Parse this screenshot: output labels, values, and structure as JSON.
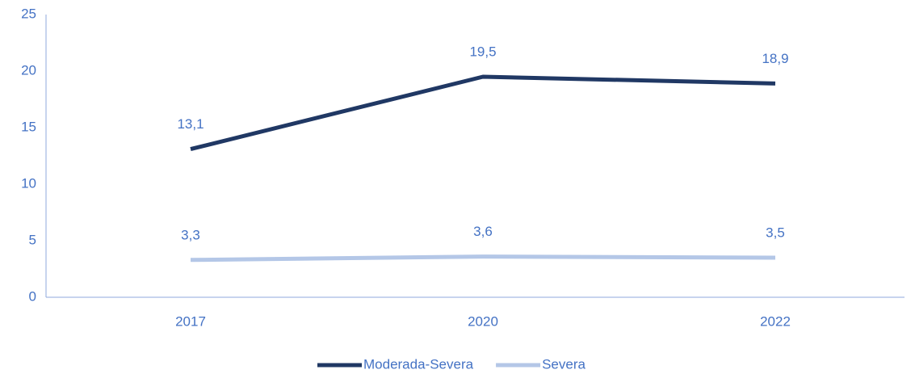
{
  "chart_data": {
    "type": "line",
    "categories": [
      "2017",
      "2020",
      "2022"
    ],
    "series": [
      {
        "name": "Moderada-Severa",
        "color": "#203864",
        "values": [
          13.1,
          19.5,
          18.9
        ],
        "value_labels": [
          "13,1",
          "19,5",
          "18,9"
        ]
      },
      {
        "name": "Severa",
        "color": "#b4c7e7",
        "values": [
          3.3,
          3.6,
          3.5
        ],
        "value_labels": [
          "3,3",
          "3,6",
          "3,5"
        ]
      }
    ],
    "ylim": [
      0,
      25
    ],
    "yticks": [
      0,
      5,
      10,
      15,
      20,
      25
    ],
    "grid": false,
    "legend": "bottom"
  }
}
